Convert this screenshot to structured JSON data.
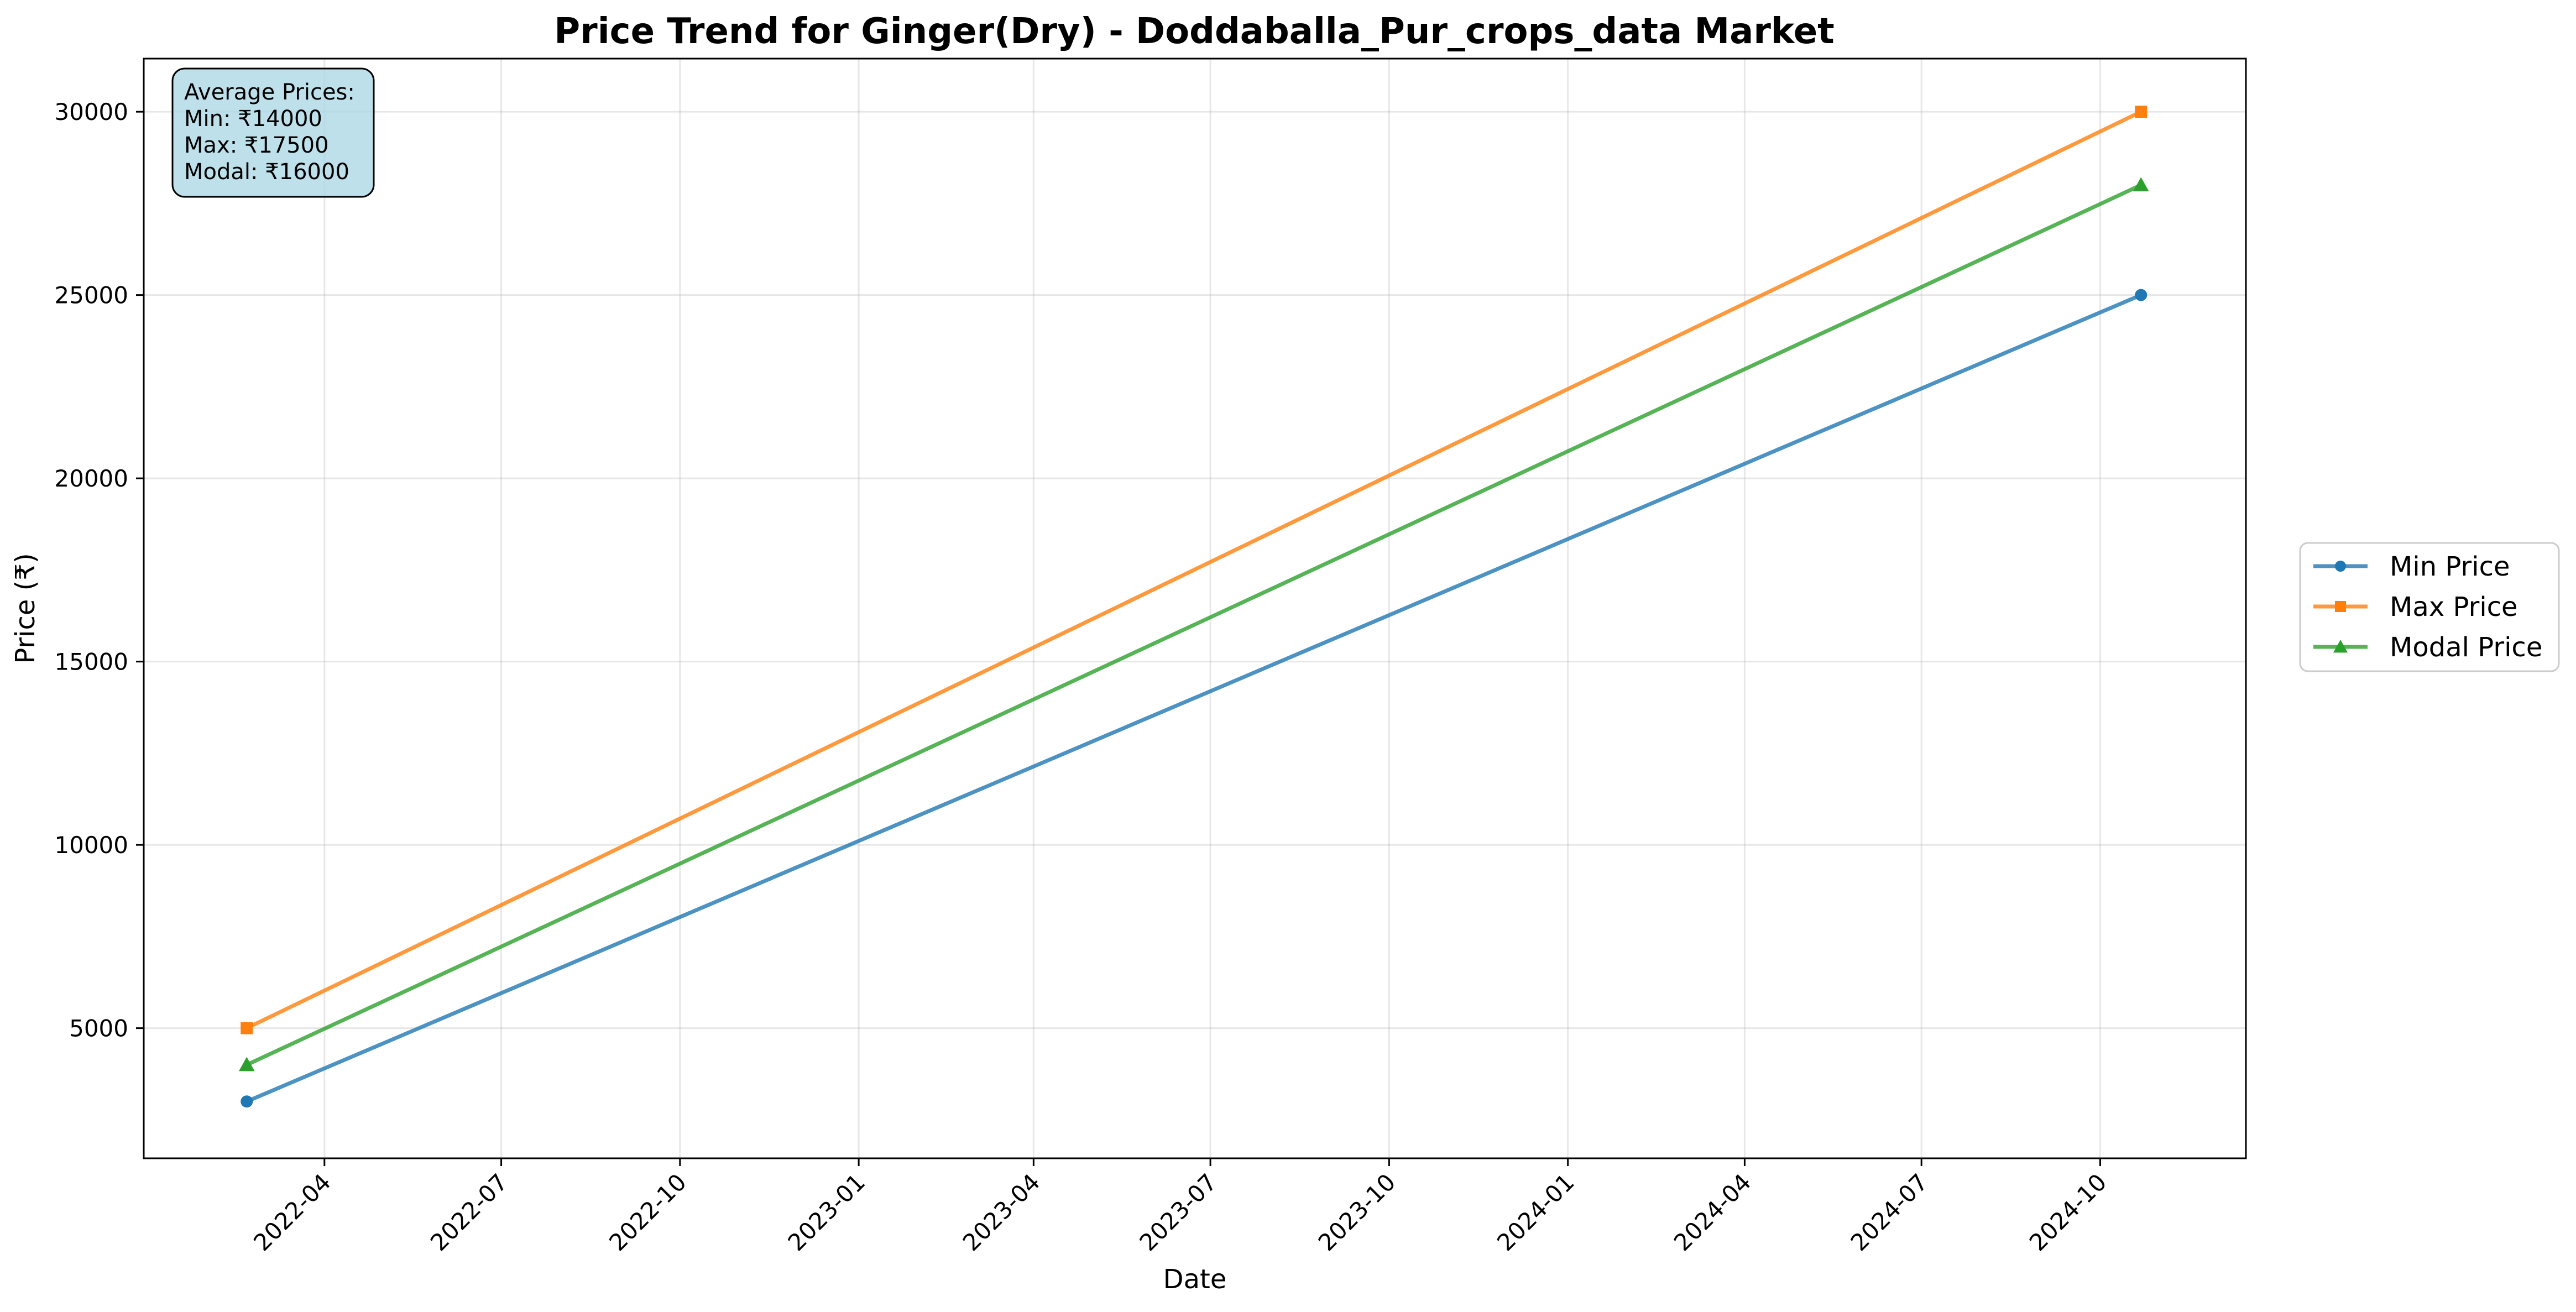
{
  "chart_data": {
    "type": "line",
    "title": "Price Trend for Ginger(Dry) - Doddaballa_Pur_crops_data Market",
    "xlabel": "Date",
    "ylabel": "Price (₹)",
    "x": [
      "2022-02-20",
      "2024-10-22"
    ],
    "x_ticks": [
      "2022-04",
      "2022-07",
      "2022-10",
      "2023-01",
      "2023-04",
      "2023-07",
      "2023-10",
      "2024-01",
      "2024-04",
      "2024-07",
      "2024-10"
    ],
    "xlim": [
      "2021-12-29",
      "2024-12-15"
    ],
    "ylim": [
      1450,
      31450
    ],
    "y_ticks": [
      5000,
      10000,
      15000,
      20000,
      25000,
      30000
    ],
    "grid": true,
    "legend_placement": "outside-right",
    "series": [
      {
        "name": "Min Price",
        "values": [
          3000,
          25000
        ],
        "color": "#1f77b4",
        "marker": "circle"
      },
      {
        "name": "Max Price",
        "values": [
          5000,
          30000
        ],
        "color": "#ff7f0e",
        "marker": "square"
      },
      {
        "name": "Modal Price",
        "values": [
          4000,
          28000
        ],
        "color": "#2ca02c",
        "marker": "triangle"
      }
    ],
    "annotation": {
      "lines": [
        "Average Prices:",
        "Min: ₹14000",
        "Max: ₹17500",
        "Modal: ₹16000"
      ],
      "background": "#add8e6"
    }
  }
}
